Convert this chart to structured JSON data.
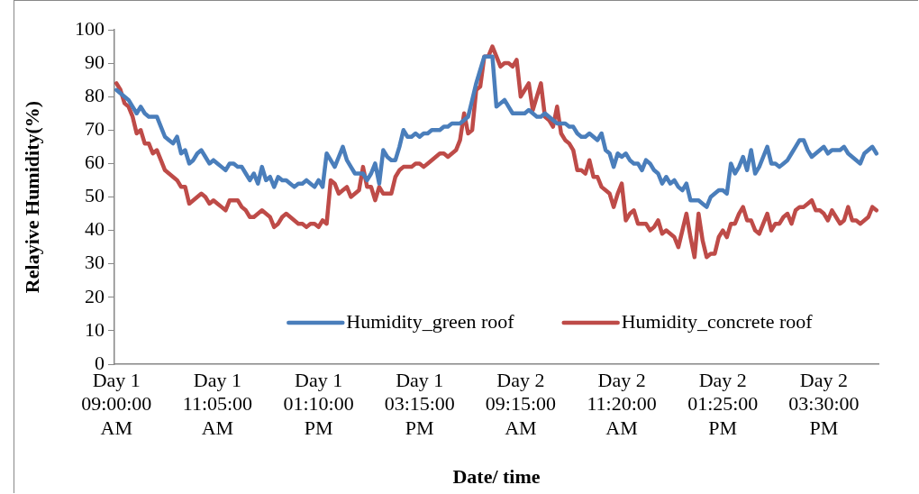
{
  "chart_data": {
    "type": "line",
    "xlabel": "Date/ time",
    "ylabel": "Relayive Humidity(%)",
    "categories": [
      "Day 1\n09:00:00\nAM",
      null,
      null,
      null,
      null,
      null,
      null,
      null,
      null,
      null,
      null,
      null,
      null,
      null,
      null,
      null,
      null,
      null,
      null,
      null,
      null,
      null,
      null,
      null,
      null,
      "Day 1\n11:05:00\nAM",
      null,
      null,
      null,
      null,
      null,
      null,
      null,
      null,
      null,
      null,
      null,
      null,
      null,
      null,
      null,
      null,
      null,
      null,
      null,
      null,
      null,
      null,
      null,
      null,
      "Day 1\n01:10:00\nPM",
      null,
      null,
      null,
      null,
      null,
      null,
      null,
      null,
      null,
      null,
      null,
      null,
      null,
      null,
      null,
      null,
      null,
      null,
      null,
      null,
      null,
      null,
      null,
      null,
      "Day 1\n03:15:00\nPM",
      null,
      null,
      null,
      null,
      null,
      null,
      null,
      null,
      null,
      null,
      null,
      null,
      null,
      null,
      null,
      null,
      null,
      null,
      null,
      null,
      null,
      null,
      null,
      null,
      "Day 2\n09:15:00\nAM",
      null,
      null,
      null,
      null,
      null,
      null,
      null,
      null,
      null,
      null,
      null,
      null,
      null,
      null,
      null,
      null,
      null,
      null,
      null,
      null,
      null,
      null,
      null,
      null,
      "Day 2\n11:20:00\nAM",
      null,
      null,
      null,
      null,
      null,
      null,
      null,
      null,
      null,
      null,
      null,
      null,
      null,
      null,
      null,
      null,
      null,
      null,
      null,
      null,
      null,
      null,
      null,
      null,
      "Day 2\n01:25:00\nPM",
      null,
      null,
      null,
      null,
      null,
      null,
      null,
      null,
      null,
      null,
      null,
      null,
      null,
      null,
      null,
      null,
      null,
      null,
      null,
      null,
      null,
      null,
      null,
      null,
      "Day 2\n03:30:00\nPM",
      null,
      null,
      null,
      null,
      null,
      null,
      null,
      null,
      null,
      null,
      null,
      null,
      null
    ],
    "ylim": [
      0,
      100
    ],
    "yticks": [
      0,
      10,
      20,
      30,
      40,
      50,
      60,
      70,
      80,
      90,
      100
    ],
    "legend": "bottom",
    "marker": "none",
    "line_style": "solid",
    "series": [
      {
        "name": "Humidity_green roof",
        "color": "#4a7ebb",
        "values": [
          82,
          81,
          80,
          79,
          77,
          75,
          77,
          75,
          74,
          74,
          74,
          71,
          68,
          67,
          66,
          68,
          63,
          64,
          60,
          61,
          63,
          64,
          62,
          60,
          61,
          60,
          59,
          58,
          60,
          60,
          59,
          59,
          57,
          55,
          57,
          54,
          59,
          55,
          56,
          53,
          56,
          55,
          55,
          54,
          53,
          54,
          54,
          55,
          54,
          53,
          55,
          53,
          63,
          61,
          59,
          62,
          65,
          61,
          59,
          57,
          57,
          57,
          55,
          57,
          60,
          54,
          64,
          62,
          61,
          61,
          65,
          70,
          68,
          68,
          69,
          68,
          69,
          69,
          70,
          70,
          70,
          71,
          71,
          72,
          72,
          72,
          73,
          74,
          79,
          84,
          88,
          92,
          92,
          92,
          77,
          78,
          79,
          77,
          75,
          75,
          75,
          75,
          76,
          75,
          74,
          74,
          75,
          74,
          73,
          72,
          72,
          72,
          71,
          71,
          69,
          68,
          68,
          69,
          68,
          67,
          69,
          64,
          63,
          59,
          63,
          62,
          63,
          61,
          60,
          60,
          58,
          61,
          60,
          58,
          57,
          54,
          56,
          54,
          55,
          53,
          52,
          54,
          49,
          49,
          49,
          48,
          47,
          50,
          51,
          52,
          52,
          51,
          60,
          57,
          59,
          62,
          58,
          64,
          57,
          59,
          62,
          65,
          60,
          60,
          59,
          60,
          61,
          63,
          65,
          67,
          67,
          64,
          62,
          63,
          64,
          65,
          63,
          64,
          64,
          64,
          65,
          63,
          62,
          61,
          60,
          63,
          64,
          65,
          63
        ]
      },
      {
        "name": "Humidity_concrete roof",
        "color": "#be4b48",
        "values": [
          84,
          82,
          78,
          77,
          74,
          69,
          70,
          66,
          66,
          63,
          64,
          61,
          58,
          57,
          56,
          55,
          53,
          53,
          48,
          49,
          50,
          51,
          50,
          48,
          49,
          48,
          47,
          46,
          49,
          49,
          49,
          47,
          46,
          44,
          44,
          45,
          46,
          45,
          44,
          41,
          42,
          44,
          45,
          44,
          43,
          42,
          42,
          41,
          42,
          42,
          41,
          43,
          42,
          55,
          54,
          51,
          52,
          53,
          50,
          51,
          52,
          59,
          53,
          53,
          49,
          53,
          51,
          51,
          51,
          56,
          58,
          59,
          59,
          59,
          60,
          60,
          59,
          60,
          61,
          62,
          63,
          63,
          62,
          63,
          64,
          67,
          75,
          69,
          70,
          82,
          83,
          92,
          92,
          95,
          92,
          89,
          90,
          90,
          89,
          91,
          80,
          82,
          84,
          76,
          80,
          84,
          74,
          73,
          71,
          77,
          69,
          67,
          66,
          64,
          58,
          58,
          57,
          61,
          56,
          56,
          53,
          52,
          51,
          47,
          51,
          54,
          43,
          45,
          46,
          42,
          42,
          42,
          40,
          41,
          43,
          39,
          40,
          39,
          38,
          35,
          40,
          45,
          38,
          32,
          45,
          37,
          32,
          33,
          33,
          38,
          40,
          38,
          42,
          42,
          45,
          47,
          43,
          43,
          40,
          39,
          42,
          45,
          40,
          42,
          42,
          44,
          45,
          42,
          46,
          47,
          47,
          48,
          49,
          46,
          46,
          45,
          43,
          46,
          44,
          42,
          43,
          47,
          43,
          43,
          42,
          43,
          44,
          47,
          46
        ]
      }
    ]
  }
}
